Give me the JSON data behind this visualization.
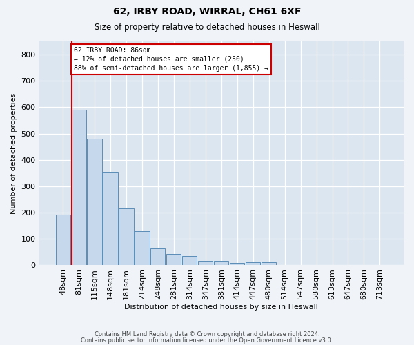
{
  "title1": "62, IRBY ROAD, WIRRAL, CH61 6XF",
  "title2": "Size of property relative to detached houses in Heswall",
  "xlabel": "Distribution of detached houses by size in Heswall",
  "ylabel": "Number of detached properties",
  "bar_labels": [
    "48sqm",
    "81sqm",
    "115sqm",
    "148sqm",
    "181sqm",
    "214sqm",
    "248sqm",
    "281sqm",
    "314sqm",
    "347sqm",
    "381sqm",
    "414sqm",
    "447sqm",
    "480sqm",
    "514sqm",
    "547sqm",
    "580sqm",
    "613sqm",
    "647sqm",
    "680sqm",
    "713sqm"
  ],
  "bar_heights": [
    192,
    590,
    480,
    352,
    215,
    130,
    65,
    42,
    35,
    16,
    16,
    8,
    11,
    11,
    0,
    0,
    0,
    0,
    0,
    0,
    0
  ],
  "bar_color": "#c5d8ec",
  "bar_edge_color": "#5b8db8",
  "highlight_color": "#cc0000",
  "annotation_text": "62 IRBY ROAD: 86sqm\n← 12% of detached houses are smaller (250)\n88% of semi-detached houses are larger (1,855) →",
  "annotation_box_edgecolor": "#cc0000",
  "ylim": [
    0,
    850
  ],
  "yticks": [
    0,
    100,
    200,
    300,
    400,
    500,
    600,
    700,
    800
  ],
  "plot_bg_color": "#dce6f1",
  "fig_bg_color": "#f0f4f8",
  "grid_color": "#ffffff",
  "footer1": "Contains HM Land Registry data © Crown copyright and database right 2024.",
  "footer2": "Contains public sector information licensed under the Open Government Licence v3.0."
}
